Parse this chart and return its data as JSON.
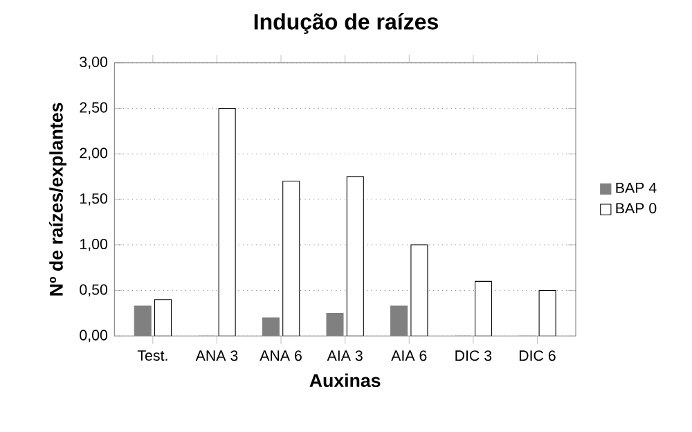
{
  "chart_data": {
    "type": "bar",
    "title": "Indução de raízes",
    "xlabel": "Auxinas",
    "ylabel": "Nº de raízes/explantes",
    "categories": [
      "Test.",
      "ANA 3",
      "ANA 6",
      "AIA 3",
      "AIA 6",
      "DIC 3",
      "DIC 6"
    ],
    "series": [
      {
        "name": "BAP 4",
        "color": "#808080",
        "values": [
          0.33,
          0,
          0.2,
          0.25,
          0.33,
          0,
          0
        ]
      },
      {
        "name": "BAP 0",
        "color": "#ffffff",
        "values": [
          0.4,
          2.5,
          1.7,
          1.75,
          1.0,
          0.6,
          0.5
        ]
      }
    ],
    "ylim": [
      0,
      3
    ],
    "yticks": [
      {
        "value": 0,
        "label": "0,00"
      },
      {
        "value": 0.5,
        "label": "0,50"
      },
      {
        "value": 1,
        "label": "1,00"
      },
      {
        "value": 1.5,
        "label": "1,50"
      },
      {
        "value": 2,
        "label": "2,00"
      },
      {
        "value": 2.5,
        "label": "2,50"
      },
      {
        "value": 3,
        "label": "3,00"
      }
    ],
    "grid": "y",
    "legend": "right"
  }
}
